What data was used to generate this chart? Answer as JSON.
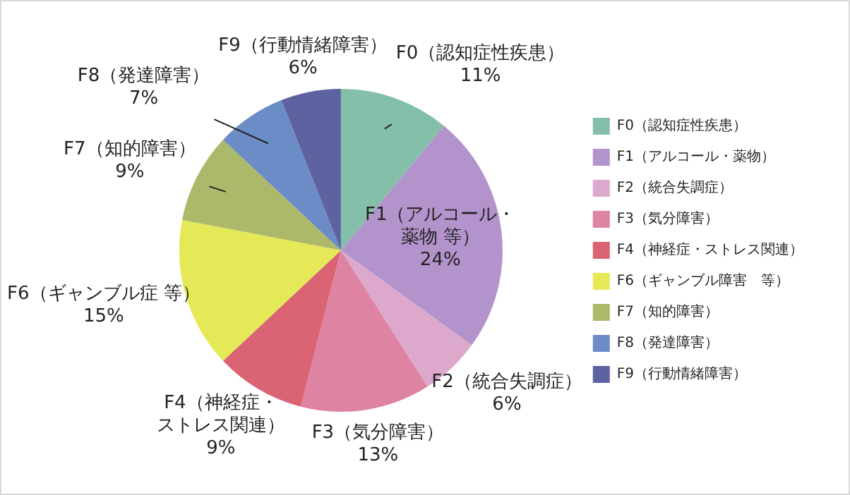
{
  "chart_data": {
    "type": "pie",
    "categories": [
      "F0（認知症性疾患）",
      "F1（アルコール・薬物）",
      "F2（統合失調症）",
      "F3（気分障害）",
      "F4（神経症・ストレス関連）",
      "F6（ギャンブル障害　等）",
      "F7（知的障害）",
      "F8（発達障害）",
      "F9（行動情緒障害）"
    ],
    "values": [
      11,
      24,
      6,
      13,
      9,
      15,
      9,
      7,
      6
    ],
    "colors": [
      "#84bfaa",
      "#b393cb",
      "#dca8cc",
      "#df83a3",
      "#da6474",
      "#e5e957",
      "#adb96a",
      "#6b8cc7",
      "#5d62a0"
    ],
    "value_labels": [
      "F0（認知症性疾患）\n11%",
      "F1（アルコール・薬物 等）\n24%",
      "F2（統合失調症）\n6%",
      "F3（気分障害）\n13%",
      "F4（神経症・ストレス関連）\n9%",
      "F6（ギャンブル症 等）\n15%",
      "F7（知的障害）\n9%",
      "F8（発達障害）\n7%",
      "F9（行動情緒障害）\n6%"
    ],
    "legend": "right"
  }
}
